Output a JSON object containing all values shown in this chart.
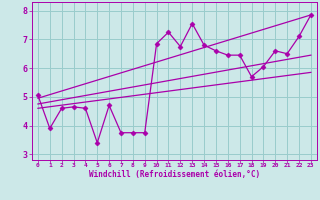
{
  "bg_color": "#cce8e8",
  "grid_color": "#99cccc",
  "line_color": "#aa00aa",
  "marker_color": "#aa00aa",
  "xlabel": "Windchill (Refroidissement éolien,°C)",
  "xlabel_color": "#aa00aa",
  "xlim": [
    -0.5,
    23.5
  ],
  "ylim": [
    2.8,
    8.3
  ],
  "yticks": [
    3,
    4,
    5,
    6,
    7,
    8
  ],
  "xticks": [
    0,
    1,
    2,
    3,
    4,
    5,
    6,
    7,
    8,
    9,
    10,
    11,
    12,
    13,
    14,
    15,
    16,
    17,
    18,
    19,
    20,
    21,
    22,
    23
  ],
  "series1_x": [
    0,
    1,
    2,
    3,
    4,
    5,
    6,
    7,
    8,
    9,
    10,
    11,
    12,
    13,
    14,
    15,
    16,
    17,
    18,
    19,
    20,
    21,
    22,
    23
  ],
  "series1_y": [
    5.05,
    3.9,
    4.6,
    4.65,
    4.6,
    3.4,
    4.7,
    3.75,
    3.75,
    3.75,
    6.85,
    7.25,
    6.75,
    7.55,
    6.8,
    6.6,
    6.45,
    6.45,
    5.7,
    6.05,
    6.6,
    6.5,
    7.1,
    7.85
  ],
  "series2_x": [
    0,
    23
  ],
  "series2_y": [
    4.95,
    7.85
  ],
  "series3_x": [
    0,
    23
  ],
  "series3_y": [
    4.75,
    6.45
  ],
  "series4_x": [
    0,
    23
  ],
  "series4_y": [
    4.6,
    5.85
  ],
  "font_family": "monospace"
}
